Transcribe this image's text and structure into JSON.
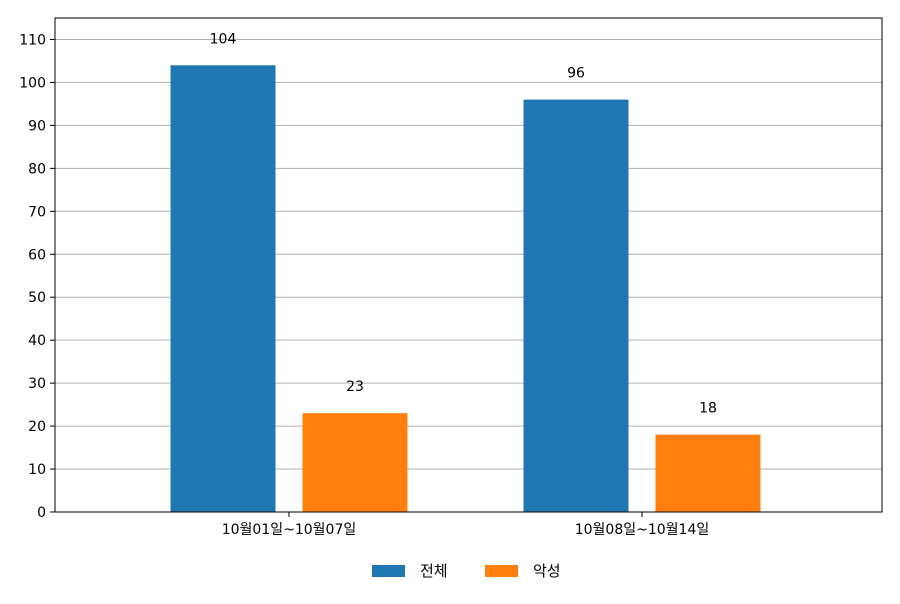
{
  "chart_data": {
    "type": "bar",
    "title": "",
    "xlabel": "",
    "ylabel": "",
    "categories": [
      "10월01일~10월07일",
      "10월08일~10월14일"
    ],
    "series": [
      {
        "name": "전체",
        "color": "#1f77b4",
        "values": [
          104,
          96
        ]
      },
      {
        "name": "악성",
        "color": "#ff7f0e",
        "values": [
          23,
          18
        ]
      }
    ],
    "ylim": [
      0,
      115
    ],
    "yticks": [
      0,
      10,
      20,
      30,
      40,
      50,
      60,
      70,
      80,
      90,
      100,
      110
    ],
    "grid": "horizontal",
    "grid_color": "#b0b0b0",
    "legend_position": "bottom-center",
    "data_labels": true
  }
}
